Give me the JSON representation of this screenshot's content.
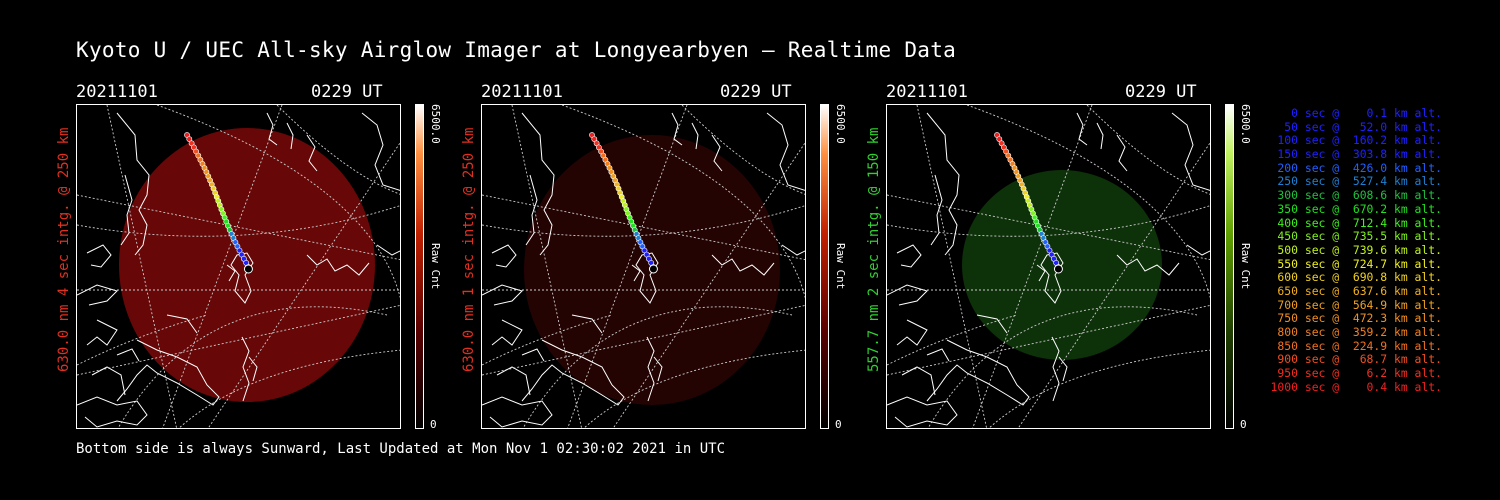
{
  "title": "Kyoto U / UEC All-sky Airglow Imager at Longyearbyen — Realtime Data",
  "panels": [
    {
      "date": "20211101",
      "time": "0229 UT",
      "ylabel": "630.0 nm 4 sec intg. @ 250 km",
      "ylabel_color": "#e03020",
      "cbar_max": "6500.0",
      "cbar_min": "0",
      "cbar_label": "Raw Cnt",
      "glow": "#8a0a0a",
      "glow_opacity": 0.75
    },
    {
      "date": "20211101",
      "time": "0229 UT",
      "ylabel": "630.0 nm 1 sec intg. @ 250 km",
      "ylabel_color": "#e03020",
      "cbar_max": "6500.0",
      "cbar_min": "0",
      "cbar_label": "Raw Cnt",
      "glow": "#2a0404",
      "glow_opacity": 0.85
    },
    {
      "date": "20211101",
      "time": "0229 UT",
      "ylabel": "557.7 nm 2 sec intg. @ 150 km",
      "ylabel_color": "#30d030",
      "cbar_max": "6500.0",
      "cbar_min": "0",
      "cbar_label": "Raw Cnt",
      "glow": "#0f3a0a",
      "glow_opacity": 0.85
    }
  ],
  "footer": "Bottom side is always Sunward, Last Updated at Mon Nov  1 02:30:02 2021 in UTC",
  "legend": [
    {
      "text": "   0 sec @    0.1 km alt.",
      "color": "#2020ff"
    },
    {
      "text": "  50 sec @   52.0 km alt.",
      "color": "#2020ff"
    },
    {
      "text": " 100 sec @  160.2 km alt.",
      "color": "#2020ff"
    },
    {
      "text": " 150 sec @  303.8 km alt.",
      "color": "#2020ff"
    },
    {
      "text": " 200 sec @  426.0 km alt.",
      "color": "#2060ff"
    },
    {
      "text": " 250 sec @  527.4 km alt.",
      "color": "#2080d0"
    },
    {
      "text": " 300 sec @  608.6 km alt.",
      "color": "#20c040"
    },
    {
      "text": " 350 sec @  670.2 km alt.",
      "color": "#20e020"
    },
    {
      "text": " 400 sec @  712.4 km alt.",
      "color": "#40f020"
    },
    {
      "text": " 450 sec @  735.5 km alt.",
      "color": "#80f020"
    },
    {
      "text": " 500 sec @  739.6 km alt.",
      "color": "#c0f020"
    },
    {
      "text": " 550 sec @  724.7 km alt.",
      "color": "#f0f020"
    },
    {
      "text": " 600 sec @  690.8 km alt.",
      "color": "#f0d020"
    },
    {
      "text": " 650 sec @  637.6 km alt.",
      "color": "#f0b020"
    },
    {
      "text": " 700 sec @  564.9 km alt.",
      "color": "#f0a020"
    },
    {
      "text": " 750 sec @  472.3 km alt.",
      "color": "#f09020"
    },
    {
      "text": " 800 sec @  359.2 km alt.",
      "color": "#f08020"
    },
    {
      "text": " 850 sec @  224.9 km alt.",
      "color": "#f07020"
    },
    {
      "text": " 900 sec @   68.7 km alt.",
      "color": "#f05020"
    },
    {
      "text": " 950 sec @    6.2 km alt.",
      "color": "#f03020"
    },
    {
      "text": "1000 sec @    0.4 km alt.",
      "color": "#f02020"
    }
  ]
}
